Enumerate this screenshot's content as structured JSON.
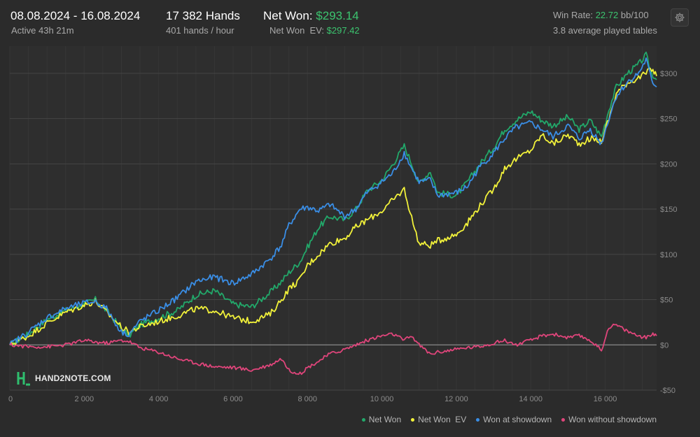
{
  "header": {
    "date_range": "08.08.2024 - 16.08.2024",
    "active_time": "Active 43h 21m",
    "hands": "17 382 Hands",
    "hands_rate": "401 hands / hour",
    "net_won_label": "Net Won:",
    "net_won_value": "$293.14",
    "net_won_ev_label": "Net Won  EV:",
    "net_won_ev_value": "$297.42",
    "win_rate_label": "Win Rate:",
    "win_rate_value": "22.72",
    "win_rate_unit": "bb/100",
    "tables": "3.8 average played tables"
  },
  "settings_icon": "gear-icon",
  "logo_text": "HAND2NOTE.COM",
  "colors": {
    "net_won": "#22a86a",
    "net_won_ev": "#f2f23a",
    "won_showdown": "#3a8ee6",
    "won_without_showdown": "#e0457b",
    "accent_green": "#3cc46f"
  },
  "chart_data": {
    "type": "line",
    "xlim": [
      0,
      17382
    ],
    "ylim": [
      -50,
      330
    ],
    "x_ticks": [
      0,
      2000,
      4000,
      6000,
      8000,
      10000,
      12000,
      14000,
      16000
    ],
    "x_tick_labels": [
      "0",
      "2 000",
      "4 000",
      "6 000",
      "8 000",
      "10 000",
      "12 000",
      "14 000",
      "16 000"
    ],
    "y_ticks": [
      -50,
      0,
      50,
      100,
      150,
      200,
      250,
      300
    ],
    "y_tick_labels": [
      "-$50",
      "$0",
      "$50",
      "$100",
      "$150",
      "$200",
      "$250",
      "$300"
    ],
    "grid": true,
    "legend_position": "bottom-right",
    "x": [
      0,
      500,
      1000,
      1500,
      2000,
      2300,
      2600,
      3000,
      3200,
      3500,
      4000,
      4500,
      5000,
      5500,
      6000,
      6500,
      7000,
      7300,
      7500,
      7800,
      8000,
      8300,
      8600,
      9000,
      9300,
      9600,
      10000,
      10300,
      10600,
      10800,
      11000,
      11300,
      11500,
      12000,
      12300,
      12600,
      13000,
      13300,
      13600,
      14000,
      14300,
      14600,
      15000,
      15300,
      15600,
      15900,
      16100,
      16300,
      16600,
      16900,
      17100,
      17250,
      17382
    ],
    "series": [
      {
        "name": "Net Won",
        "values": [
          0,
          12,
          28,
          38,
          45,
          50,
          38,
          18,
          10,
          22,
          30,
          38,
          55,
          60,
          45,
          42,
          58,
          70,
          80,
          92,
          108,
          130,
          142,
          138,
          150,
          170,
          182,
          200,
          220,
          200,
          178,
          192,
          168,
          165,
          180,
          198,
          218,
          238,
          248,
          258,
          248,
          242,
          252,
          238,
          248,
          230,
          260,
          285,
          300,
          310,
          320,
          300,
          293
        ]
      },
      {
        "name": "Net Won  EV",
        "values": [
          0,
          10,
          24,
          36,
          44,
          48,
          36,
          20,
          14,
          20,
          26,
          32,
          40,
          38,
          30,
          26,
          34,
          50,
          62,
          72,
          88,
          100,
          112,
          118,
          130,
          138,
          148,
          160,
          172,
          140,
          112,
          110,
          115,
          122,
          135,
          152,
          172,
          195,
          205,
          215,
          232,
          222,
          232,
          222,
          228,
          225,
          250,
          278,
          290,
          295,
          300,
          305,
          297
        ]
      },
      {
        "name": "Won at showdown",
        "values": [
          0,
          14,
          30,
          40,
          46,
          48,
          40,
          14,
          12,
          26,
          38,
          52,
          70,
          75,
          68,
          78,
          95,
          110,
          132,
          150,
          152,
          148,
          155,
          142,
          150,
          168,
          180,
          190,
          212,
          195,
          180,
          182,
          165,
          168,
          175,
          195,
          212,
          228,
          240,
          245,
          238,
          230,
          242,
          228,
          238,
          222,
          250,
          275,
          290,
          300,
          315,
          292,
          285
        ]
      },
      {
        "name": "Won without showdown",
        "values": [
          0,
          -2,
          -2,
          0,
          5,
          3,
          2,
          5,
          4,
          -3,
          -8,
          -15,
          -20,
          -24,
          -25,
          -28,
          -22,
          -15,
          -28,
          -32,
          -25,
          -18,
          -10,
          -5,
          0,
          5,
          10,
          12,
          5,
          10,
          0,
          -10,
          -8,
          -5,
          -3,
          -2,
          2,
          5,
          0,
          5,
          10,
          12,
          8,
          10,
          5,
          -6,
          20,
          22,
          15,
          10,
          8,
          12,
          10
        ]
      }
    ]
  }
}
